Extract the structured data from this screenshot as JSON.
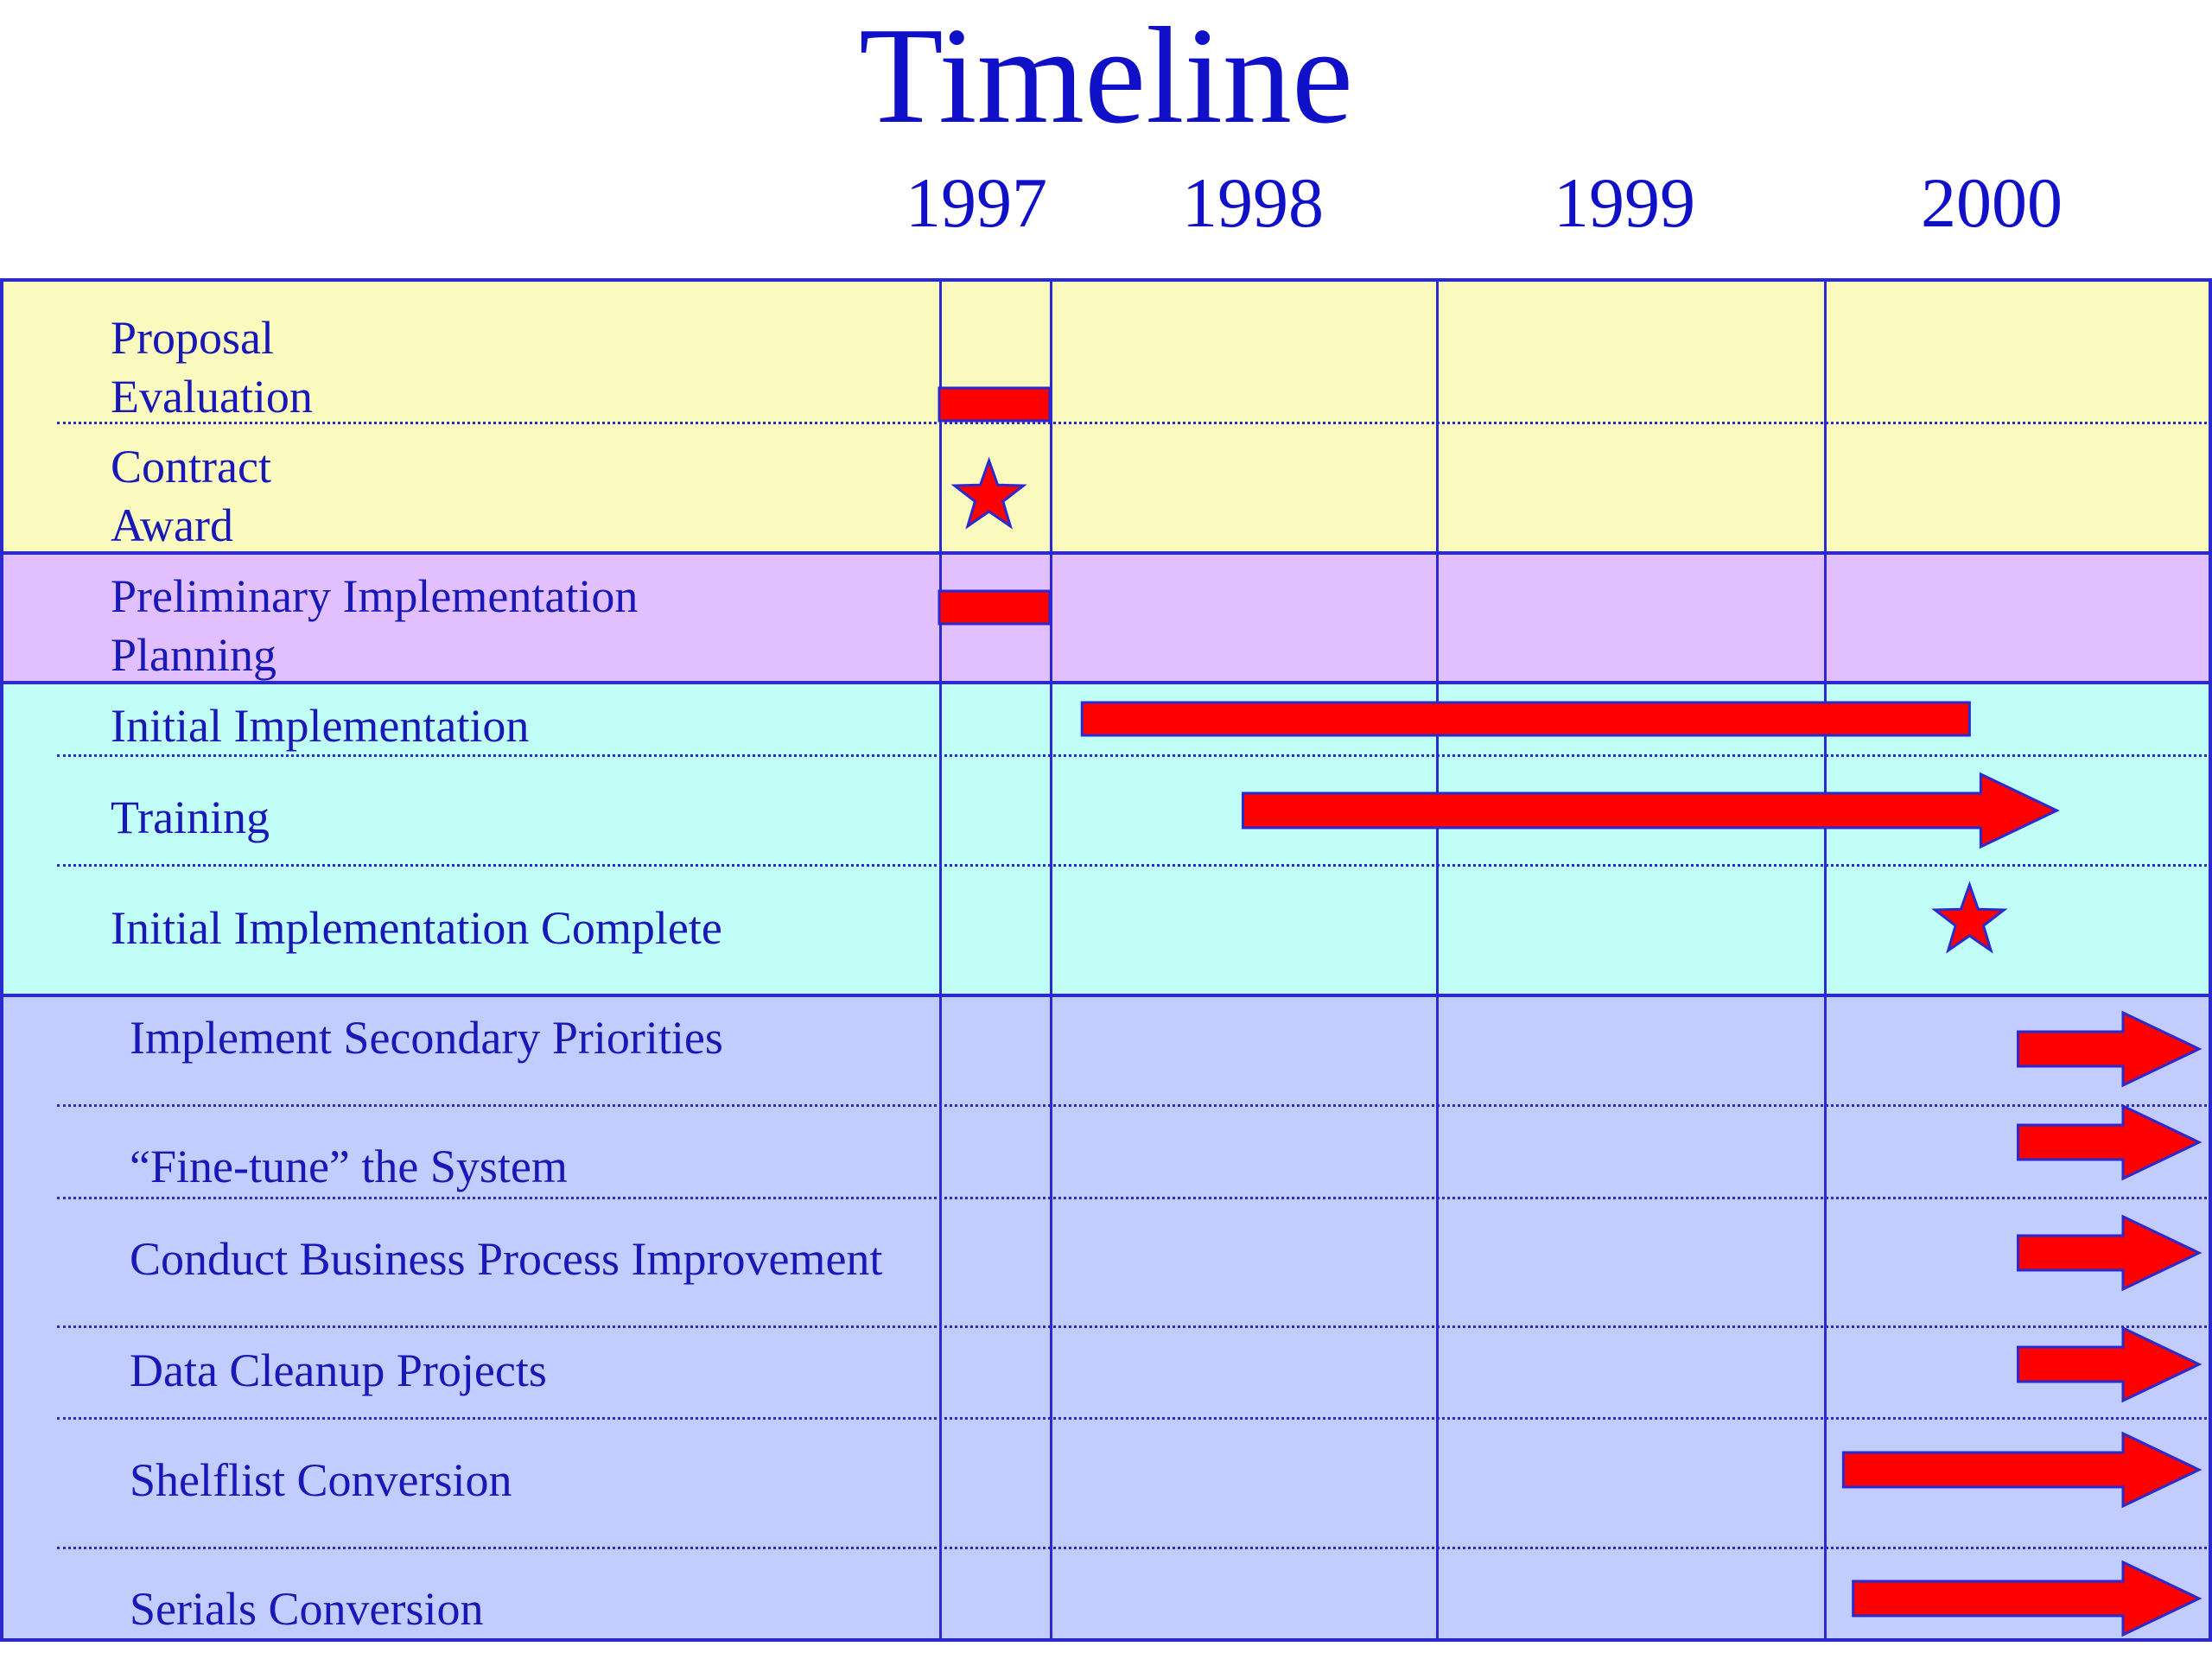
{
  "title": "Timeline",
  "years": [
    "1997",
    "1998",
    "1999",
    "2000"
  ],
  "colors": {
    "ink": "#1010c8",
    "bar": "#ff0000",
    "band_proposal": "#fafabe",
    "band_planning": "#e2c0ff",
    "band_initial": "#c0fdf7",
    "band_secondary": "#c2ccff"
  },
  "rows": [
    {
      "label": "Proposal\nEvaluation",
      "mark": "bar",
      "start": 1997.0,
      "end": 1997.4
    },
    {
      "label": "Contract\nAward",
      "mark": "star",
      "at": 1997.18
    },
    {
      "label": "Preliminary Implementation\nPlanning",
      "mark": "bar",
      "start": 1997.0,
      "end": 1997.4
    },
    {
      "label": "Initial Implementation",
      "mark": "bar",
      "start": 1997.45,
      "end": 1999.75
    },
    {
      "label": "Training",
      "mark": "arrow",
      "start": 1997.7,
      "end": 2000.2
    },
    {
      "label": "Initial Implementation Complete",
      "mark": "star",
      "at": 1999.75
    },
    {
      "label": "Implement Secondary Priorities",
      "mark": "arrow",
      "start": 2000.0,
      "end": 2000.95
    },
    {
      "label": "“Fine-tune” the System",
      "mark": "arrow",
      "start": 2000.0,
      "end": 2000.95
    },
    {
      "label": "Conduct Business Process Improvement",
      "mark": "arrow",
      "start": 2000.0,
      "end": 2000.95
    },
    {
      "label": "Data Cleanup Projects",
      "mark": "arrow",
      "start": 2000.0,
      "end": 2000.95
    },
    {
      "label": "Shelflist Conversion",
      "mark": "arrow",
      "start": 1999.1,
      "end": 2000.95
    },
    {
      "label": "Serials Conversion",
      "mark": "arrow",
      "start": 1999.15,
      "end": 2000.95
    }
  ]
}
